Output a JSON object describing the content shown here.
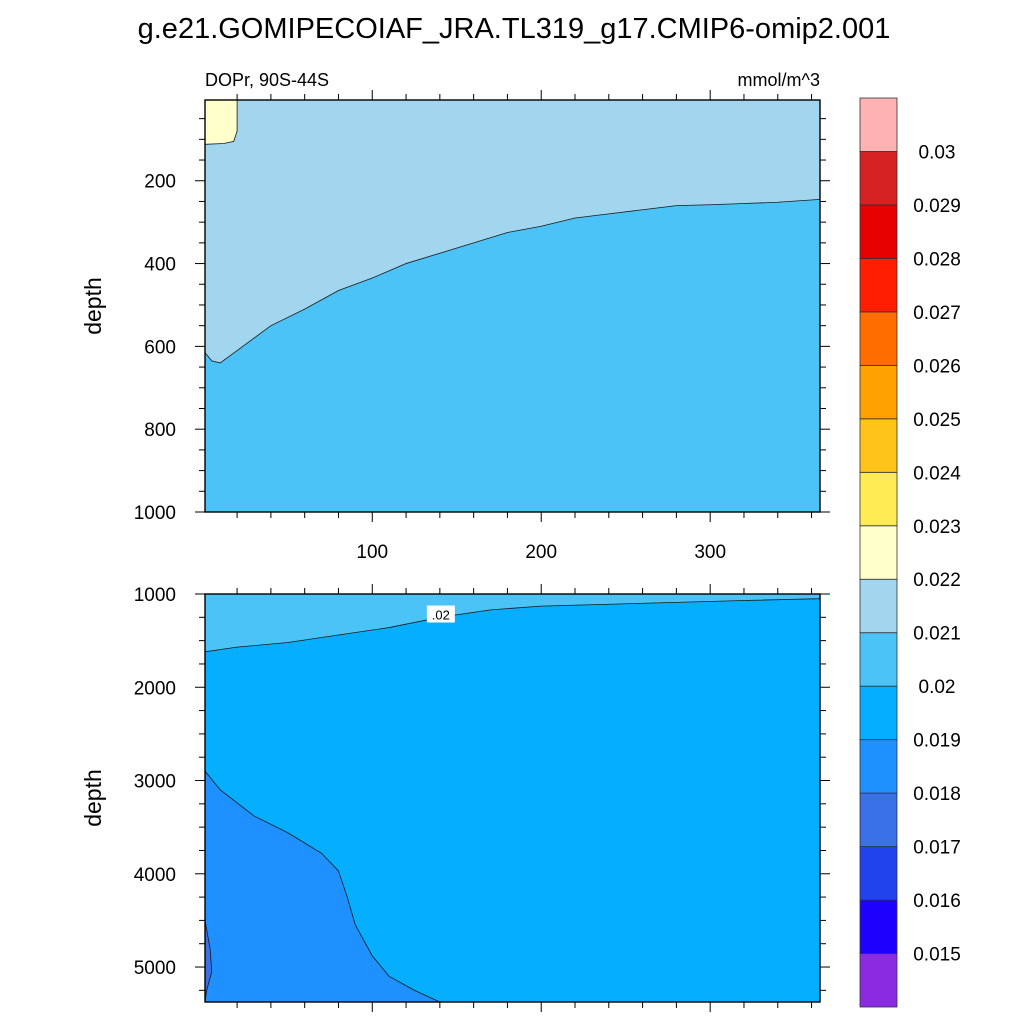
{
  "title": "g.e21.GOMIPECOIAF_JRA.TL319_g17.CMIP6-omip2.001",
  "colorbar": {
    "colors": [
      "#8a2be2",
      "#1e00ff",
      "#2143ee",
      "#3a70e8",
      "#1e90ff",
      "#06aeff",
      "#4bc3f7",
      "#a2d5ee",
      "#ffffcc",
      "#ffec55",
      "#ffc41a",
      "#ffa100",
      "#ff6d00",
      "#ff1e00",
      "#e60000",
      "#d52121",
      "#ffb2b2"
    ],
    "labels": [
      "0.015",
      "0.016",
      "0.017",
      "0.018",
      "0.019",
      "0.02",
      "0.021",
      "0.022",
      "0.023",
      "0.024",
      "0.025",
      "0.026",
      "0.027",
      "0.028",
      "0.029",
      "0.03"
    ]
  },
  "chart_data": [
    {
      "type": "contour",
      "left_text": "DOPr, 90S-44S",
      "right_text": "mmol/m^3",
      "ylabel": "depth",
      "xlim": [
        1,
        365
      ],
      "ylim": [
        1000,
        5
      ],
      "x_ticks": [
        "100",
        "200",
        "300"
      ],
      "y_ticks": [
        "200",
        "400",
        "600",
        "800",
        "1000"
      ],
      "background_color": "#4bc3f7",
      "regions": [
        {
          "level": "0.021-0.022",
          "color": "#a2d5ee",
          "boundary": [
            [
              1,
              615
            ],
            [
              5,
              635
            ],
            [
              10,
              640
            ],
            [
              20,
              610
            ],
            [
              40,
              550
            ],
            [
              60,
              510
            ],
            [
              80,
              465
            ],
            [
              100,
              435
            ],
            [
              120,
              400
            ],
            [
              140,
              375
            ],
            [
              160,
              350
            ],
            [
              180,
              325
            ],
            [
              200,
              310
            ],
            [
              220,
              290
            ],
            [
              240,
              280
            ],
            [
              260,
              270
            ],
            [
              280,
              260
            ],
            [
              300,
              258
            ],
            [
              320,
              255
            ],
            [
              340,
              252
            ],
            [
              365,
              245
            ]
          ]
        },
        {
          "level": "0.022-0.023",
          "color": "#ffffcc",
          "boundary": [
            [
              1,
              5
            ],
            [
              20,
              5
            ],
            [
              20,
              80
            ],
            [
              18,
              105
            ],
            [
              12,
              110
            ],
            [
              1,
              112
            ]
          ]
        }
      ]
    },
    {
      "type": "contour",
      "ylabel": "depth",
      "xlim": [
        1,
        365
      ],
      "ylim": [
        1000,
        5375
      ],
      "x_ticks": [
        "100",
        "200",
        "300"
      ],
      "y_ticks": [
        "1000",
        "2000",
        "3000",
        "4000",
        "5000"
      ],
      "background_color": "#06aeff",
      "contour_labels": [
        {
          "text": ".02",
          "x": 140,
          "y": 1220
        }
      ],
      "regions": [
        {
          "level": "0.020-0.021",
          "color": "#4bc3f7",
          "boundary": [
            [
              1,
              1620
            ],
            [
              20,
              1570
            ],
            [
              50,
              1520
            ],
            [
              80,
              1440
            ],
            [
              110,
              1360
            ],
            [
              140,
              1250
            ],
            [
              170,
              1170
            ],
            [
              200,
              1130
            ],
            [
              240,
              1110
            ],
            [
              280,
              1090
            ],
            [
              320,
              1070
            ],
            [
              365,
              1050
            ]
          ]
        },
        {
          "level": "0.018-0.019",
          "color": "#1e90ff",
          "boundary": [
            [
              1,
              2900
            ],
            [
              10,
              3100
            ],
            [
              30,
              3380
            ],
            [
              50,
              3560
            ],
            [
              70,
              3780
            ],
            [
              80,
              3970
            ],
            [
              85,
              4240
            ],
            [
              90,
              4550
            ],
            [
              100,
              4880
            ],
            [
              110,
              5100
            ],
            [
              125,
              5250
            ],
            [
              140,
              5375
            ]
          ]
        },
        {
          "level": "0.017-0.018",
          "color": "#3a70e8",
          "boundary": [
            [
              1,
              4500
            ],
            [
              4,
              4800
            ],
            [
              5,
              5050
            ],
            [
              2,
              5250
            ],
            [
              1,
              5375
            ]
          ]
        }
      ]
    }
  ]
}
